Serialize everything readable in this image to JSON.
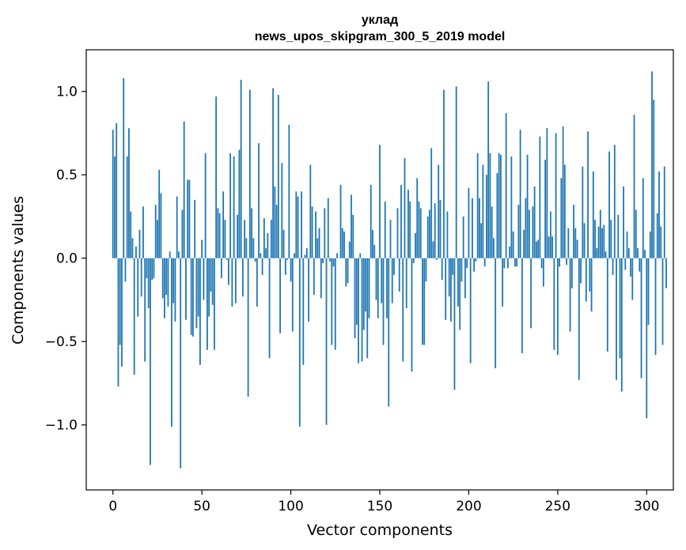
{
  "chart_data": {
    "type": "bar",
    "title": "уклад",
    "subtitle": "news_upos_skipgram_300_5_2019 model",
    "xlabel": "Vector components",
    "ylabel": "Components values",
    "xlim": [
      -15,
      315
    ],
    "ylim": [
      -1.39,
      1.25
    ],
    "xticks": [
      0,
      50,
      100,
      150,
      200,
      250,
      300
    ],
    "xtick_labels": [
      "0",
      "50",
      "100",
      "150",
      "200",
      "250",
      "300"
    ],
    "yticks": [
      -1.0,
      -0.5,
      0.0,
      0.5,
      1.0
    ],
    "ytick_labels": [
      "−1.0",
      "−0.5",
      "0.0",
      "0.5",
      "1.0"
    ],
    "grid": false,
    "bar_color": "#1f77b4",
    "values": [
      0.77,
      0.61,
      0.81,
      -0.77,
      -0.52,
      -0.65,
      1.08,
      -0.14,
      0.61,
      0.78,
      0.28,
      0.12,
      -0.7,
      0.07,
      -0.35,
      0.17,
      -0.23,
      0.31,
      -0.62,
      -0.12,
      -0.3,
      -1.24,
      -0.13,
      -0.12,
      0.32,
      0.23,
      0.53,
      0.39,
      -0.24,
      -0.36,
      -0.22,
      -0.29,
      0.04,
      -1.01,
      -0.27,
      -0.38,
      0.37,
      0.04,
      -1.26,
      0.29,
      0.82,
      -0.37,
      0.47,
      0.47,
      -0.46,
      -0.47,
      0.35,
      -0.42,
      -0.35,
      -0.64,
      0.11,
      -0.25,
      0.63,
      -0.55,
      -0.35,
      -0.2,
      -0.28,
      -0.55,
      0.97,
      0.3,
      0.27,
      -0.12,
      0.4,
      0.23,
      -0.01,
      -0.16,
      0.63,
      -0.29,
      0.61,
      -0.27,
      0.26,
      0.65,
      1.07,
      -0.23,
      0.23,
      0.12,
      -0.83,
      1.01,
      0.3,
      0.12,
      -0.02,
      -0.29,
      0.69,
      0.03,
      -0.1,
      0.24,
      0.06,
      0.15,
      -0.6,
      0.23,
      1.02,
      0.43,
      0.32,
      0.98,
      -0.45,
      0.57,
      0.17,
      -0.1,
      -0.01,
      0.8,
      -0.14,
      -0.44,
      0.03,
      0.4,
      0.37,
      -1.01,
      0.4,
      -0.64,
      0.02,
      0.06,
      -0.38,
      0.56,
      0.31,
      -0.22,
      0.28,
      0.12,
      0.18,
      -0.24,
      -0.03,
      0.3,
      -1.0,
      0.36,
      -0.02,
      -0.52,
      -0.05,
      -0.55,
      0.03,
      0.0,
      0.44,
      0.18,
      0.16,
      -0.17,
      -0.15,
      0.1,
      0.38,
      0.26,
      -0.48,
      -0.4,
      -0.63,
      0.03,
      -0.62,
      -0.43,
      -0.32,
      -0.6,
      -0.36,
      0.44,
      0.17,
      0.08,
      -0.25,
      -0.36,
      0.68,
      -0.27,
      -0.52,
      0.34,
      -0.36,
      -0.89,
      0.23,
      -0.27,
      -0.1,
      0.0,
      0.3,
      -0.2,
      0.44,
      -0.62,
      0.6,
      -0.3,
      0.41,
      0.34,
      -0.68,
      -0.03,
      0.15,
      0.48,
      0.34,
      0.3,
      -0.52,
      -0.52,
      -0.14,
      0.25,
      0.29,
      0.66,
      0.1,
      0.33,
      -0.01,
      0.56,
      0.35,
      -0.13,
      1.01,
      -0.37,
      0.28,
      -0.23,
      -0.38,
      -0.1,
      -0.79,
      1.03,
      -0.29,
      -0.43,
      -0.14,
      0.25,
      -0.24,
      -0.06,
      0.42,
      -0.63,
      0.36,
      -0.08,
      -0.02,
      0.63,
      0.36,
      0.21,
      0.56,
      -0.05,
      0.5,
      1.06,
      0.63,
      0.31,
      0.12,
      -0.66,
      0.51,
      0.63,
      0.62,
      -0.29,
      -0.06,
      0.87,
      -0.06,
      0.07,
      0.61,
      0.16,
      -0.05,
      -0.05,
      0.32,
      0.77,
      -0.57,
      0.17,
      0.36,
      0.62,
      0.29,
      -0.42,
      0.31,
      0.43,
      0.1,
      0.11,
      0.73,
      -0.06,
      -0.17,
      0.59,
      0.78,
      0.13,
      0.28,
      0.13,
      -0.55,
      0.75,
      -0.58,
      -0.05,
      0.48,
      0.79,
      0.56,
      -0.04,
      0.18,
      -0.44,
      -0.18,
      0.32,
      0.18,
      0.11,
      -0.73,
      -0.15,
      0.55,
      0.21,
      -0.26,
      0.76,
      -0.2,
      -0.32,
      0.52,
      0.23,
      0.06,
      0.19,
      0.29,
      0.18,
      0.2,
      0.04,
      -0.56,
      0.64,
      0.23,
      -0.1,
      0.68,
      -0.73,
      0.26,
      -0.6,
      -0.8,
      0.43,
      -0.07,
      0.16,
      0.06,
      -0.11,
      -0.25,
      0.86,
      0.29,
      0.06,
      -0.08,
      -0.72,
      0.48,
      0.05,
      -0.96,
      -0.4,
      0.16,
      1.12,
      0.95,
      -0.58,
      0.27,
      0.52,
      0.19,
      -0.52,
      0.55,
      -0.18
    ]
  }
}
